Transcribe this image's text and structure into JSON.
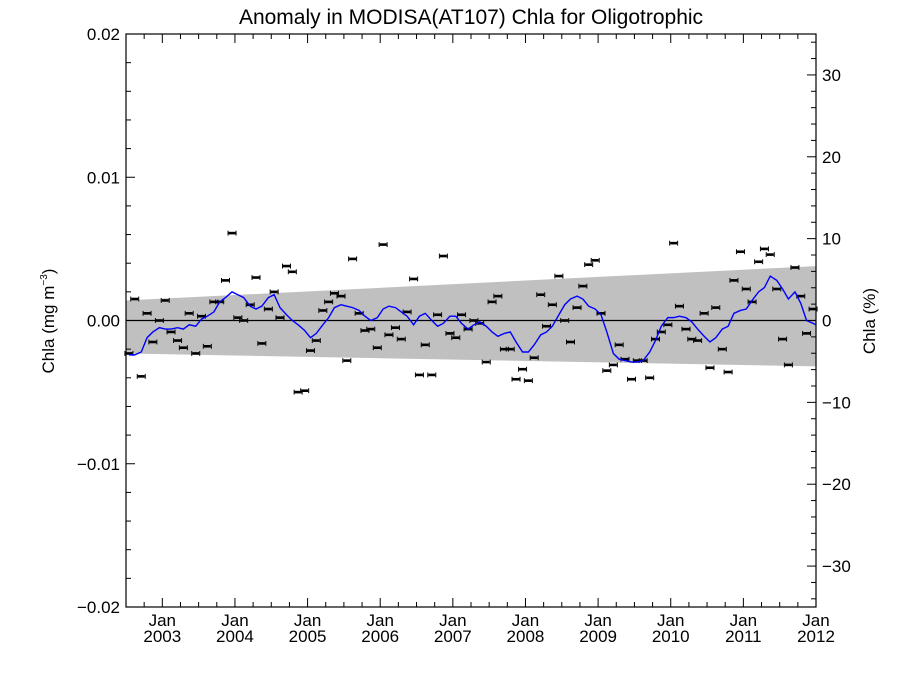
{
  "chart_data": {
    "type": "scatter",
    "title": "Anomaly in MODISA(AT107) Chla for Oligotrophic",
    "ylabel_left_main": "Chla (mg m",
    "ylabel_left_sup": "−3",
    "ylabel_left_close": ")",
    "ylabel_right": "Chla (%)",
    "ylim_left": [
      -0.02,
      0.02
    ],
    "ylim_right": [
      -35,
      35
    ],
    "xlim": [
      2002.5,
      2012.0
    ],
    "left_ticks": [
      "0.02",
      "0.01",
      "0.00",
      "−0.01",
      "−0.02"
    ],
    "left_tick_values": [
      0.02,
      0.01,
      0.0,
      -0.01,
      -0.02
    ],
    "right_ticks": [
      "30",
      "20",
      "10",
      "0",
      "−10",
      "−20",
      "−30"
    ],
    "right_tick_values": [
      30,
      20,
      10,
      0,
      -10,
      -20,
      -30
    ],
    "x_tick_month": "Jan",
    "x_ticks": [
      "2003",
      "2004",
      "2005",
      "2006",
      "2007",
      "2008",
      "2009",
      "2010",
      "2011",
      "2012"
    ],
    "x_tick_values": [
      2003,
      2004,
      2005,
      2006,
      2007,
      2008,
      2009,
      2010,
      2011,
      2012
    ],
    "grid": false,
    "band": {
      "color": "#c0c0c0",
      "x": [
        2002.5,
        2012.0
      ],
      "upper": [
        0.0014,
        0.0038
      ],
      "lower": [
        -0.0023,
        -0.0032
      ]
    },
    "series": [
      {
        "kind": "monthly-anomaly-with-errorbars",
        "color": "#000000",
        "error": 0.0001,
        "x": [
          2002.54,
          2002.62,
          2002.71,
          2002.79,
          2002.87,
          2002.96,
          2003.04,
          2003.12,
          2003.21,
          2003.29,
          2003.37,
          2003.46,
          2003.54,
          2003.62,
          2003.71,
          2003.79,
          2003.87,
          2003.96,
          2004.04,
          2004.12,
          2004.21,
          2004.29,
          2004.37,
          2004.46,
          2004.54,
          2004.62,
          2004.71,
          2004.79,
          2004.87,
          2004.96,
          2005.04,
          2005.12,
          2005.21,
          2005.29,
          2005.37,
          2005.46,
          2005.54,
          2005.62,
          2005.71,
          2005.79,
          2005.87,
          2005.96,
          2006.04,
          2006.12,
          2006.21,
          2006.29,
          2006.37,
          2006.46,
          2006.54,
          2006.62,
          2006.71,
          2006.79,
          2006.87,
          2006.96,
          2007.04,
          2007.12,
          2007.21,
          2007.29,
          2007.37,
          2007.46,
          2007.54,
          2007.62,
          2007.71,
          2007.79,
          2007.87,
          2007.96,
          2008.04,
          2008.12,
          2008.21,
          2008.29,
          2008.37,
          2008.46,
          2008.54,
          2008.62,
          2008.71,
          2008.79,
          2008.87,
          2008.96,
          2009.04,
          2009.12,
          2009.21,
          2009.29,
          2009.37,
          2009.46,
          2009.54,
          2009.62,
          2009.71,
          2009.79,
          2009.87,
          2009.96,
          2010.04,
          2010.12,
          2010.21,
          2010.29,
          2010.37,
          2010.46,
          2010.54,
          2010.62,
          2010.71,
          2010.79,
          2010.87,
          2010.96,
          2011.04,
          2011.12,
          2011.21,
          2011.29,
          2011.37,
          2011.46,
          2011.54,
          2011.62,
          2011.71,
          2011.79,
          2011.87,
          2011.96
        ],
        "y": [
          -0.0023,
          0.0015,
          -0.0039,
          0.0005,
          -0.0015,
          0.0,
          0.0014,
          -0.0008,
          -0.0014,
          -0.0019,
          0.0005,
          -0.0023,
          0.0003,
          -0.0018,
          0.0013,
          0.0013,
          0.0028,
          0.0061,
          0.0002,
          0.0,
          0.0011,
          0.003,
          -0.0016,
          0.0008,
          0.002,
          0.0002,
          0.0038,
          0.0034,
          -0.005,
          -0.0049,
          -0.0021,
          -0.0014,
          0.0007,
          0.0013,
          0.0019,
          0.0017,
          -0.0028,
          0.0043,
          0.0005,
          -0.0007,
          -0.0006,
          -0.0019,
          0.0053,
          -0.001,
          -0.0005,
          -0.0013,
          0.0006,
          0.0029,
          -0.0038,
          -0.0017,
          -0.0038,
          0.0004,
          0.0045,
          -0.0009,
          -0.0012,
          0.0004,
          -0.0006,
          0.0,
          -0.0002,
          -0.0029,
          0.0013,
          0.0017,
          -0.002,
          -0.002,
          -0.0041,
          -0.0034,
          -0.0042,
          -0.0026,
          0.0018,
          -0.0004,
          0.0011,
          0.0031,
          0.0,
          -0.0015,
          0.0009,
          0.0024,
          0.0039,
          0.0042,
          0.0005,
          -0.0035,
          -0.0031,
          -0.0017,
          -0.0027,
          -0.0041,
          -0.0028,
          -0.0028,
          -0.004,
          -0.0013,
          -0.0008,
          -0.0003,
          0.0054,
          0.001,
          -0.0006,
          -0.0013,
          -0.0014,
          0.0005,
          -0.0033,
          0.0009,
          -0.002,
          -0.0036,
          0.0028,
          0.0048,
          0.0022,
          0.0013,
          0.0041,
          0.005,
          0.0046,
          0.0022,
          -0.0013,
          -0.0031,
          0.0037,
          0.0017,
          -0.0009,
          0.0008
        ]
      },
      {
        "kind": "smoothed-anomaly",
        "color": "#0000ff",
        "x": [
          2002.54,
          2002.62,
          2002.71,
          2002.79,
          2002.87,
          2002.96,
          2003.04,
          2003.12,
          2003.21,
          2003.29,
          2003.37,
          2003.46,
          2003.54,
          2003.62,
          2003.71,
          2003.79,
          2003.87,
          2003.96,
          2004.04,
          2004.12,
          2004.21,
          2004.29,
          2004.37,
          2004.46,
          2004.54,
          2004.62,
          2004.71,
          2004.79,
          2004.87,
          2004.96,
          2005.04,
          2005.12,
          2005.21,
          2005.29,
          2005.37,
          2005.46,
          2005.54,
          2005.62,
          2005.71,
          2005.79,
          2005.87,
          2005.96,
          2006.04,
          2006.12,
          2006.21,
          2006.29,
          2006.37,
          2006.46,
          2006.54,
          2006.62,
          2006.71,
          2006.79,
          2006.87,
          2006.96,
          2007.04,
          2007.12,
          2007.21,
          2007.29,
          2007.37,
          2007.46,
          2007.54,
          2007.62,
          2007.71,
          2007.79,
          2007.87,
          2007.96,
          2008.04,
          2008.12,
          2008.21,
          2008.29,
          2008.37,
          2008.46,
          2008.54,
          2008.62,
          2008.71,
          2008.79,
          2008.87,
          2008.96,
          2009.04,
          2009.12,
          2009.21,
          2009.29,
          2009.37,
          2009.46,
          2009.54,
          2009.62,
          2009.71,
          2009.79,
          2009.87,
          2009.96,
          2010.04,
          2010.12,
          2010.21,
          2010.29,
          2010.37,
          2010.46,
          2010.54,
          2010.62,
          2010.71,
          2010.79,
          2010.87,
          2010.96,
          2011.04,
          2011.12,
          2011.21,
          2011.29,
          2011.37,
          2011.46,
          2011.54,
          2011.62,
          2011.71,
          2011.79,
          2011.87,
          2011.96,
          2012.0
        ],
        "y": [
          -0.0024,
          -0.0024,
          -0.0022,
          -0.0012,
          -0.0008,
          -0.0005,
          -0.0006,
          -0.0006,
          -0.0005,
          -0.0006,
          -0.0003,
          -0.0004,
          0.0001,
          0.0003,
          0.0006,
          0.0013,
          0.0016,
          0.002,
          0.0018,
          0.0016,
          0.001,
          0.0008,
          0.001,
          0.0016,
          0.0018,
          0.0009,
          0.0004,
          0.0,
          -0.0003,
          -0.0007,
          -0.0012,
          -0.0009,
          -0.0003,
          0.0002,
          0.0009,
          0.0011,
          0.001,
          0.0009,
          0.0007,
          0.0003,
          0.0,
          0.0002,
          0.0008,
          0.001,
          0.0009,
          0.0006,
          0.0003,
          -0.0003,
          0.0003,
          0.0005,
          0.0,
          -0.0004,
          -0.0002,
          0.0003,
          0.0003,
          -0.0002,
          -0.0006,
          -0.0003,
          -0.0001,
          -0.0004,
          -0.0008,
          -0.0011,
          -0.0009,
          -0.0008,
          -0.0015,
          -0.0022,
          -0.0022,
          -0.0017,
          -0.001,
          -0.0008,
          -0.0004,
          0.0004,
          0.0011,
          0.0015,
          0.0017,
          0.0015,
          0.001,
          0.0008,
          0.0004,
          -0.0008,
          -0.0023,
          -0.0027,
          -0.0028,
          -0.0029,
          -0.0029,
          -0.0028,
          -0.0022,
          -0.0014,
          -0.0004,
          0.0002,
          0.0002,
          0.0003,
          0.0002,
          -0.0001,
          -0.0006,
          -0.0011,
          -0.0015,
          -0.0012,
          -0.0006,
          -0.0004,
          0.0005,
          0.0007,
          0.0008,
          0.0014,
          0.002,
          0.0023,
          0.0031,
          0.0028,
          0.0022,
          0.0015,
          0.002,
          0.0012,
          0.0,
          -0.0002,
          -0.0003
        ]
      }
    ]
  }
}
